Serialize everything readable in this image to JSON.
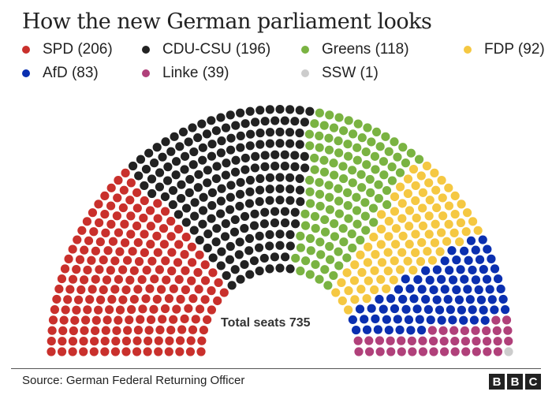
{
  "chart_data": {
    "type": "parliament",
    "title": "How the new German parliament looks",
    "total_label": "Total seats 735",
    "total": 735,
    "series": [
      {
        "name": "SPD",
        "label": "SPD (206)",
        "value": 206,
        "color": "#c9302c"
      },
      {
        "name": "CDU-CSU",
        "label": "CDU-CSU (196)",
        "value": 196,
        "color": "#222222"
      },
      {
        "name": "Greens",
        "label": "Greens (118)",
        "value": 118,
        "color": "#7ab342"
      },
      {
        "name": "FDP",
        "label": "FDP (92)",
        "value": 92,
        "color": "#f5c842"
      },
      {
        "name": "AfD",
        "label": "AfD (83)",
        "value": 83,
        "color": "#0a2fb0"
      },
      {
        "name": "Linke",
        "label": "Linke (39)",
        "value": 39,
        "color": "#b0407a"
      },
      {
        "name": "SSW",
        "label": "SSW (1)",
        "value": 1,
        "color": "#cccccc"
      }
    ],
    "legend_position": "top"
  },
  "footer": {
    "source": "Source: German Federal Returning Officer",
    "logo": "BBC"
  }
}
